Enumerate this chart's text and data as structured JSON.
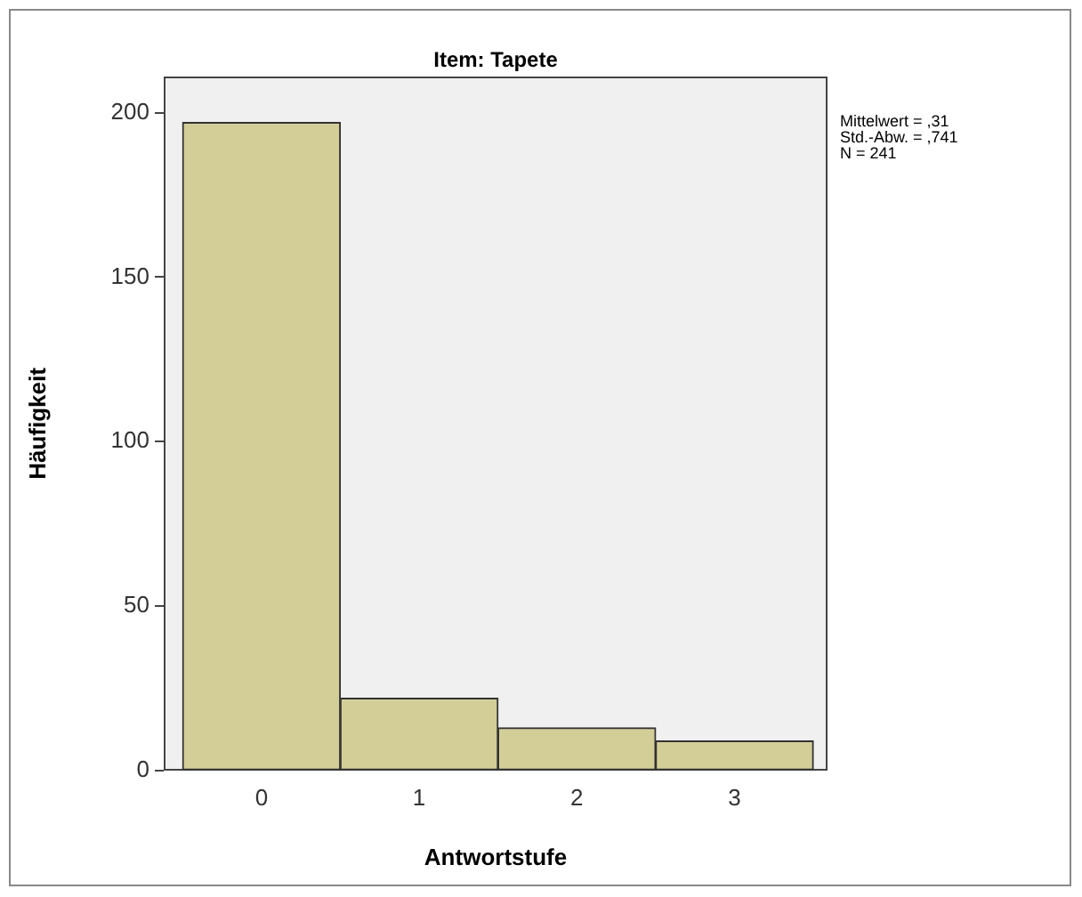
{
  "chart_data": {
    "type": "histogram",
    "title": "Item: Tapete",
    "xlabel": "Antwortstufe",
    "ylabel": "Häufigkeit",
    "bins": [
      -0.5,
      0.5,
      1.5,
      2.5,
      3.5
    ],
    "values": [
      197,
      22,
      13,
      9
    ],
    "color": "#d3ce97",
    "xlim": [
      -0.62,
      3.59
    ],
    "xticks": [
      0,
      1,
      2,
      3
    ],
    "ylim": [
      0,
      211
    ],
    "yticks": [
      0,
      50,
      100,
      150,
      200
    ],
    "annotations": [
      "Mittelwert = ,31",
      "Std.-Abw. = ,741",
      "N = 241"
    ]
  }
}
